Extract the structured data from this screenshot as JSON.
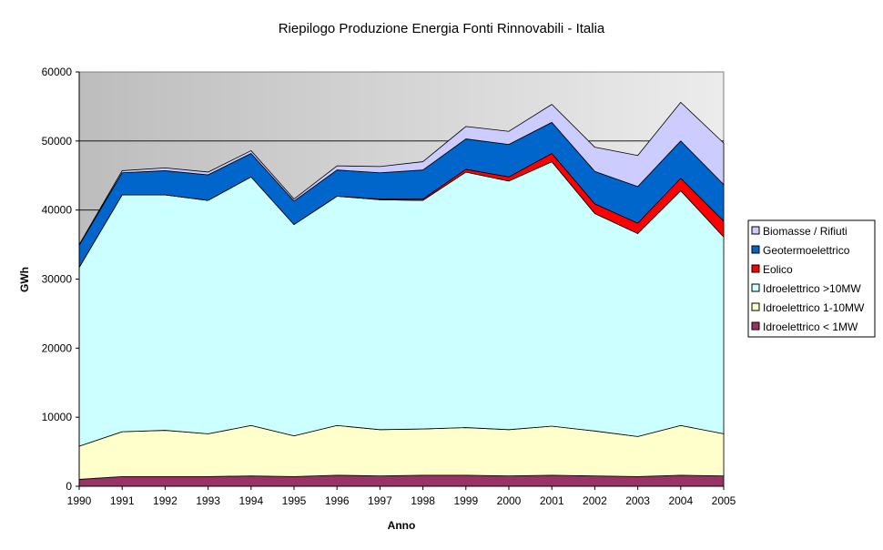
{
  "chart_data": {
    "type": "area",
    "stacked": true,
    "title": "Riepilogo Produzione Energia Fonti Rinnovabili - Italia",
    "xlabel": "Anno",
    "ylabel": "GWh",
    "ylim": [
      0,
      60000
    ],
    "yticks": [
      "0",
      "10000",
      "20000",
      "30000",
      "40000",
      "50000",
      "60000"
    ],
    "categories": [
      "1990",
      "1991",
      "1992",
      "1993",
      "1994",
      "1995",
      "1996",
      "1997",
      "1998",
      "1999",
      "2000",
      "2001",
      "2002",
      "2003",
      "2004",
      "2005"
    ],
    "legend_position": "right",
    "gridlines": "horizontal",
    "plot_background": "gray gradient",
    "series": [
      {
        "name": "Idroelettrico < 1MW",
        "color": "#993366",
        "values": [
          1000,
          1400,
          1400,
          1400,
          1500,
          1400,
          1600,
          1500,
          1600,
          1600,
          1500,
          1600,
          1500,
          1400,
          1600,
          1500
        ]
      },
      {
        "name": "Idroelettrico 1-10MW",
        "color": "#FFFFCC",
        "values": [
          4800,
          6500,
          6700,
          6200,
          7300,
          5900,
          7200,
          6700,
          6700,
          6900,
          6700,
          7100,
          6500,
          5800,
          7200,
          6100
        ]
      },
      {
        "name": "Idroelettrico >10MW",
        "color": "#CCFFFF",
        "values": [
          25900,
          34300,
          34100,
          33800,
          36000,
          30600,
          33200,
          33300,
          33100,
          37000,
          36000,
          38300,
          31500,
          29400,
          34000,
          28500
        ]
      },
      {
        "name": "Eolico",
        "color": "#FF0000",
        "values": [
          0,
          0,
          0,
          0,
          0,
          0,
          0,
          100,
          200,
          400,
          600,
          1200,
          1400,
          1500,
          1800,
          2300
        ]
      },
      {
        "name": "Geotermoelettrico",
        "color": "#0066CC",
        "values": [
          3200,
          3200,
          3500,
          3700,
          3400,
          3400,
          3800,
          3800,
          4200,
          4400,
          4700,
          4500,
          4700,
          5300,
          5400,
          5300
        ]
      },
      {
        "name": "Biomasse / Rifiuti",
        "color": "#CCCCFF",
        "values": [
          100,
          300,
          400,
          400,
          400,
          300,
          600,
          900,
          1200,
          1800,
          1900,
          2600,
          3500,
          4500,
          5600,
          6000
        ]
      }
    ],
    "legend_order": [
      "Biomasse / Rifiuti",
      "Geotermoelettrico",
      "Eolico",
      "Idroelettrico >10MW",
      "Idroelettrico 1-10MW",
      "Idroelettrico < 1MW"
    ]
  }
}
